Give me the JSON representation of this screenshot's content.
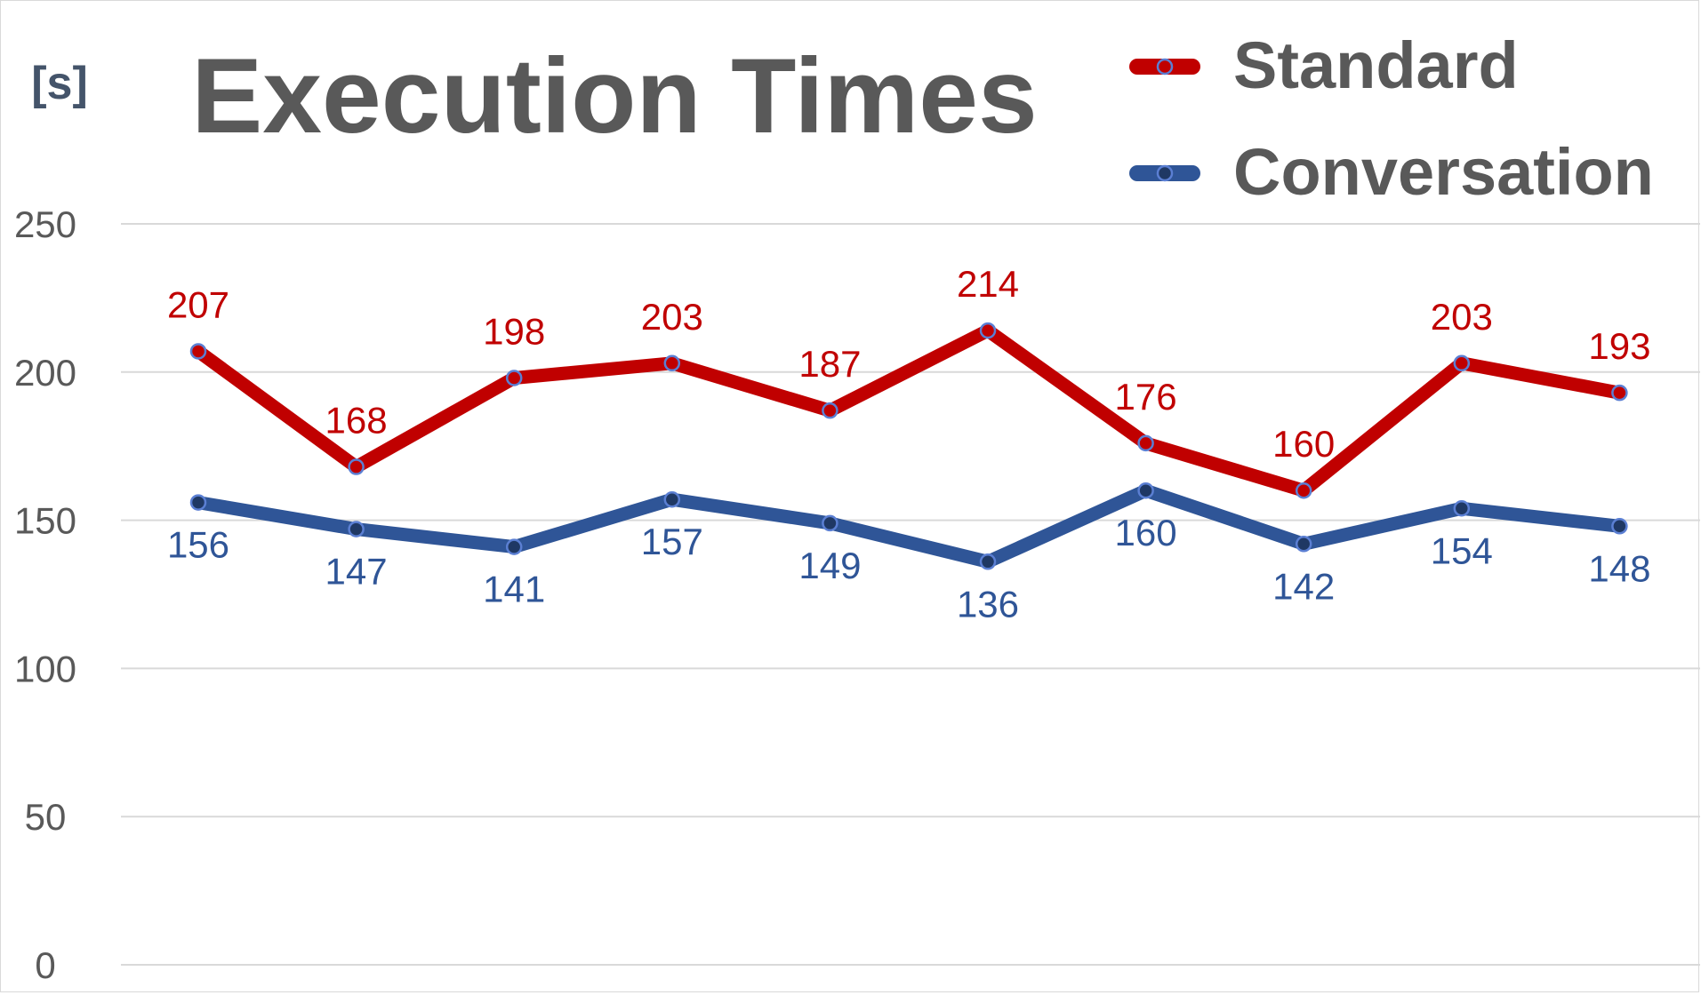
{
  "chart_data": {
    "type": "line",
    "title": "Execution Times",
    "ylabel": "[s]",
    "xlabel": "",
    "categories": [
      "",
      "",
      "",
      "",
      "",
      "",
      "",
      "",
      "",
      ""
    ],
    "ylim": [
      0,
      250
    ],
    "yticks": [
      0,
      50,
      100,
      150,
      200,
      250
    ],
    "grid": true,
    "legend_position": "top-right",
    "series": [
      {
        "name": "Standard",
        "color": "#c00000",
        "label_position": "above",
        "values": [
          207,
          168,
          198,
          203,
          187,
          214,
          176,
          160,
          203,
          193
        ]
      },
      {
        "name": "Conversation",
        "color": "#2f5597",
        "label_position": "below",
        "values": [
          156,
          147,
          141,
          157,
          149,
          136,
          160,
          142,
          154,
          148
        ]
      }
    ]
  },
  "colors": {
    "title": "#595959",
    "axis_text": "#595959",
    "unit_label": "#44546a",
    "grid": "#d9d9d9",
    "marker_fill_standard": "#c00000",
    "marker_fill_conversation": "#1f3864",
    "marker_stroke": "#5b7fd3"
  }
}
